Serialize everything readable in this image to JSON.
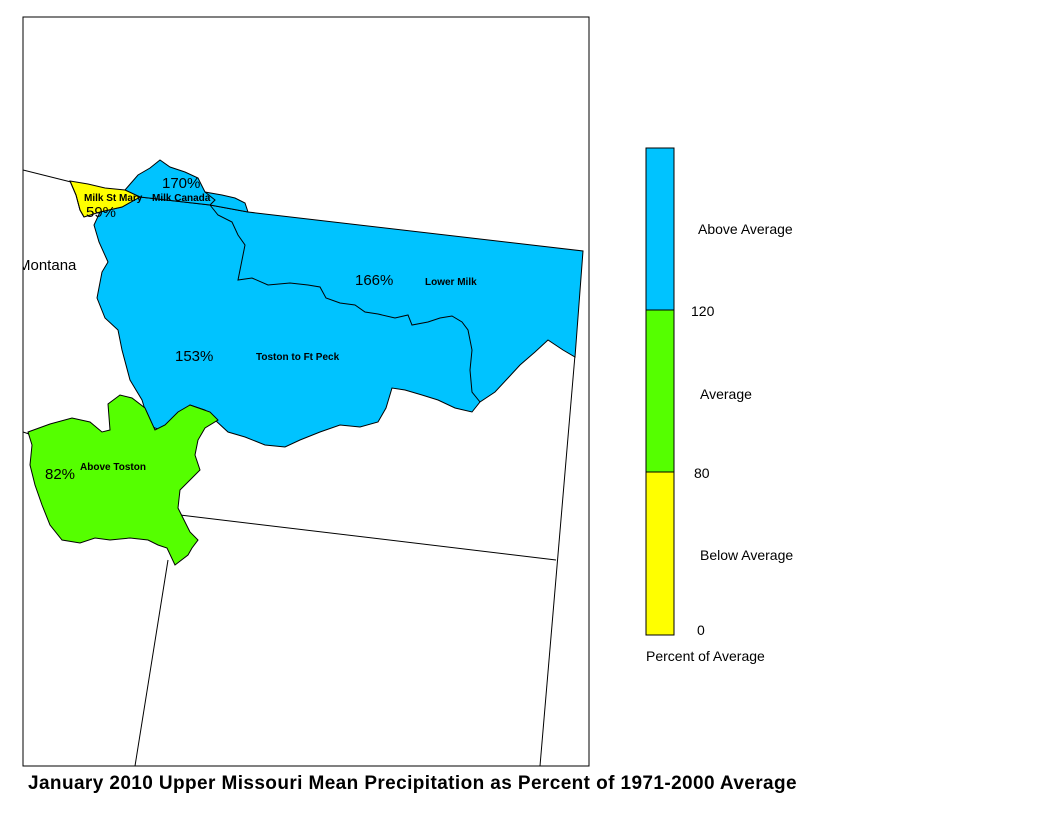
{
  "title": "January 2010 Upper Missouri Mean Precipitation as Percent of 1971-2000 Average",
  "state_label": "Montana",
  "colors": {
    "above_average": "#00c3ff",
    "average": "#55ff00",
    "below_average": "#ffff00",
    "border": "#000000",
    "background": "#ffffff"
  },
  "basins": [
    {
      "name": "Milk St Mary",
      "percent": "59%",
      "category": "below_average"
    },
    {
      "name": "Milk Canada",
      "percent": "170%",
      "category": "above_average"
    },
    {
      "name": "Lower Milk",
      "percent": "166%",
      "category": "above_average"
    },
    {
      "name": "Toston to Ft Peck",
      "percent": "153%",
      "category": "above_average"
    },
    {
      "name": "Above Toston",
      "percent": "82%",
      "category": "average"
    }
  ],
  "legend": {
    "title": "Percent of Average",
    "categories": [
      {
        "label": "Above Average",
        "color": "#00c3ff",
        "range": [
          120,
          null
        ]
      },
      {
        "label": "Average",
        "color": "#55ff00",
        "range": [
          80,
          120
        ]
      },
      {
        "label": "Below Average",
        "color": "#ffff00",
        "range": [
          0,
          80
        ]
      }
    ],
    "breaks": [
      "120",
      "80",
      "0"
    ]
  }
}
